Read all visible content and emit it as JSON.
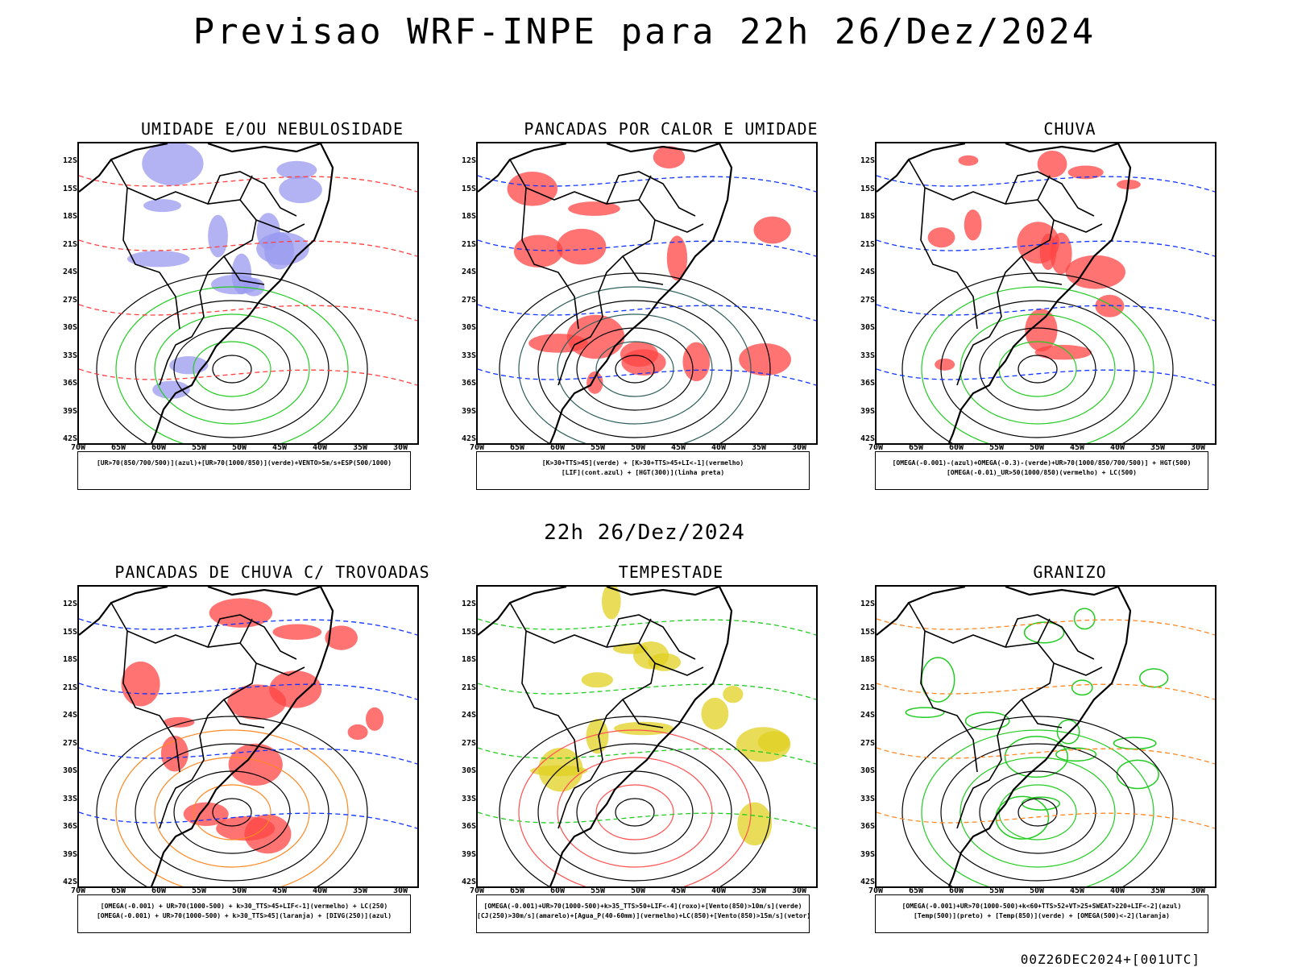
{
  "title": "Previsao WRF-INPE  para 22h 26/Dez/2024",
  "subtitle": "22h 26/Dez/2024",
  "footer": "00Z26DEC2024+[001UTC]",
  "axes": {
    "lat_labels": [
      "12S",
      "15S",
      "18S",
      "21S",
      "24S",
      "27S",
      "30S",
      "33S",
      "36S",
      "39S",
      "42S"
    ],
    "lon_labels": [
      "70W",
      "65W",
      "60W",
      "55W",
      "50W",
      "45W",
      "40W",
      "35W",
      "30W"
    ]
  },
  "panels": [
    {
      "title": "UMIDADE E/OU NEBULOSIDADE",
      "legend": [
        "[UR>70(850/700/500)](azul)+[UR>70(1000/850)](verde)+VENTO>5m/s+ESP(500/1000)"
      ],
      "colors": {
        "fill": "#9a9af0",
        "contour": "#22cc22",
        "dash": "#ff4040"
      }
    },
    {
      "title": "PANCADAS POR CALOR E UMIDADE",
      "legend": [
        "[K>30+TTS>45](verde) + [K>30+TTS>45+LI<-1](vermelho)",
        "[LIF](cont.azul) + [HGT(300)](linha preta)"
      ],
      "colors": {
        "fill": "#ff4444",
        "contour": "#2f5f5a",
        "dash": "#1133ff"
      }
    },
    {
      "title": "CHUVA",
      "legend": [
        "[OMEGA(-0.001)-(azul)+OMEGA(-0.3)-(verde)+UR>70(1000/850/700/500)] + HGT(500)",
        "[OMEGA(-0.01)_UR>50(1000/850)(vermelho) + LC(500)"
      ],
      "colors": {
        "fill": "#ff4444",
        "contour": "#22cc22",
        "dash": "#1133ff"
      }
    },
    {
      "title": "PANCADAS DE CHUVA C/ TROVOADAS",
      "legend": [
        "[OMEGA(-0.001) + UR>70(1000-500) + k>30_TTS>45+LIF<-1](vermelho) + LC(250)",
        "[OMEGA(-0.001) + UR>70(1000-500) + k>30_TTS>45](laranja) + [DIVG(250)](azul)"
      ],
      "colors": {
        "fill": "#ff4444",
        "contour": "#ff8822",
        "dash": "#1133ff"
      }
    },
    {
      "title": "TEMPESTADE",
      "legend": [
        "[OMEGA(-0.001)+UR>70(1000-500)+k>35_TTS>50+LIF<-4](roxo)+[Vento(850)>10m/s](verde)",
        "[CJ(250)>30m/s](amarelo)+[Agua_P(40-60mm)](vermelho)+LC(850)+[Vento(850)>15m/s](vetor)"
      ],
      "colors": {
        "fill": "#e0d020",
        "contour": "#ff5050",
        "dash": "#22cc22"
      }
    },
    {
      "title": "GRANIZO",
      "legend": [
        "[OMEGA(-0.001)+UR>70(1000-500)+k<60+TTS>52+VT>25+SWEAT>220+LIF<-2](azul)",
        "[Temp(500)](preto) + [Temp(850)](verde) + [OMEGA(500)<-2](laranja)"
      ],
      "colors": {
        "fill": "#ffffff",
        "contour": "#22cc22",
        "dash": "#ff8822"
      }
    }
  ]
}
